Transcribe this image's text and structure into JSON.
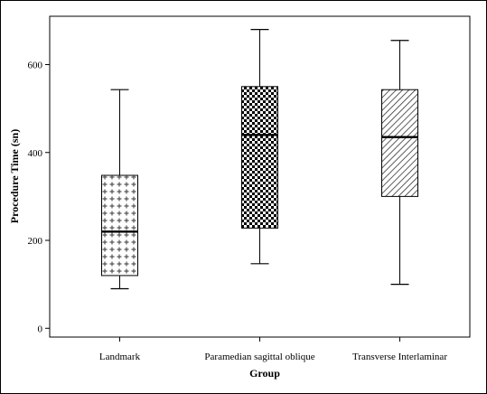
{
  "chart_data": {
    "type": "box",
    "title": "",
    "xlabel": "Group",
    "ylabel": "Procedure Time (sn)",
    "ylim": [
      -20,
      710
    ],
    "yticks": [
      0,
      200,
      400,
      600
    ],
    "grid": false,
    "categories": [
      "Landmark",
      "Paramedian sagittal oblique",
      "Transverse Interlaminar"
    ],
    "boxes": [
      {
        "min": 90,
        "q1": 120,
        "median": 220,
        "q3": 348,
        "max": 543,
        "pattern": "cross"
      },
      {
        "min": 147,
        "q1": 228,
        "median": 440,
        "q3": 550,
        "max": 680,
        "pattern": "checker"
      },
      {
        "min": 100,
        "q1": 300,
        "median": 435,
        "q3": 543,
        "max": 655,
        "pattern": "diagonal"
      }
    ]
  }
}
